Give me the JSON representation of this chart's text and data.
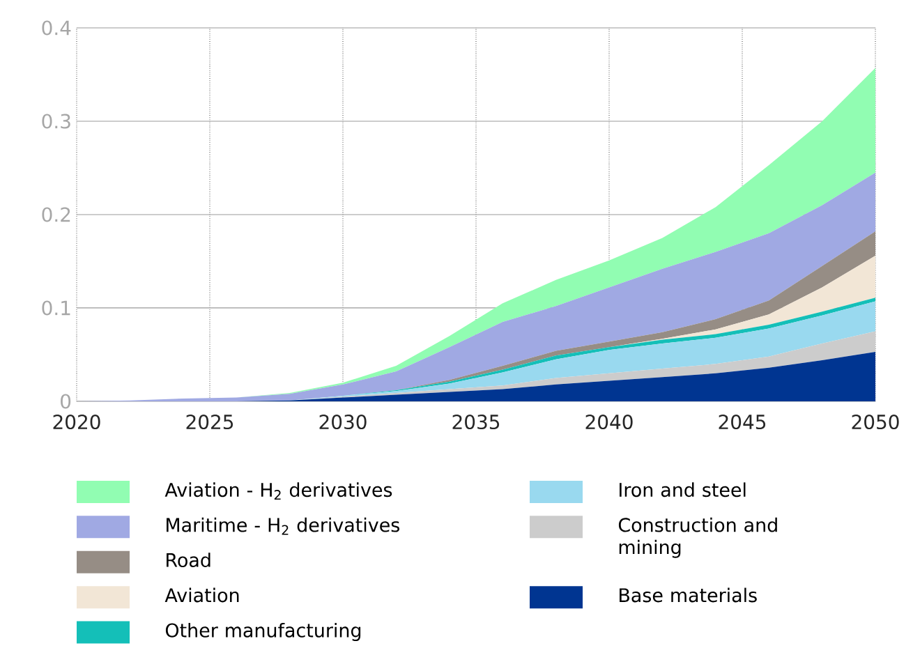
{
  "chart_data": {
    "type": "area",
    "stacked": true,
    "x": [
      2020,
      2022,
      2024,
      2026,
      2028,
      2030,
      2032,
      2034,
      2036,
      2038,
      2040,
      2042,
      2044,
      2046,
      2048,
      2050
    ],
    "series": [
      {
        "name": "Base materials",
        "color": "#003591",
        "values": [
          0,
          0,
          0,
          0,
          0.001,
          0.004,
          0.007,
          0.01,
          0.013,
          0.018,
          0.022,
          0.026,
          0.03,
          0.036,
          0.044,
          0.053
        ]
      },
      {
        "name": "Construction and mining",
        "color": "#cccccc",
        "values": [
          0,
          0,
          0,
          0,
          0,
          0.001,
          0.002,
          0.003,
          0.004,
          0.007,
          0.008,
          0.009,
          0.01,
          0.012,
          0.018,
          0.022
        ]
      },
      {
        "name": "Iron and steel",
        "color": "#99d9ef",
        "values": [
          0,
          0,
          0,
          0,
          0,
          0.001,
          0.002,
          0.006,
          0.014,
          0.02,
          0.025,
          0.027,
          0.028,
          0.03,
          0.03,
          0.032
        ]
      },
      {
        "name": "Other manufacturing",
        "color": "#14bfb8",
        "values": [
          0,
          0,
          0,
          0,
          0,
          0,
          0.001,
          0.002,
          0.003,
          0.004,
          0.003,
          0.004,
          0.004,
          0.004,
          0.004,
          0.004
        ]
      },
      {
        "name": "Aviation",
        "color": "#f2e6d6",
        "values": [
          0,
          0,
          0,
          0,
          0,
          0,
          0,
          0,
          0,
          0,
          0,
          0.001,
          0.005,
          0.011,
          0.026,
          0.045
        ]
      },
      {
        "name": "Road",
        "color": "#968d85",
        "values": [
          0,
          0,
          0,
          0,
          0,
          0,
          0,
          0.002,
          0.004,
          0.005,
          0.006,
          0.007,
          0.011,
          0.015,
          0.023,
          0.026
        ]
      },
      {
        "name": "Maritime - H$_{2}$ derivatives",
        "color": "#a0a9e3",
        "values": [
          0,
          0.001,
          0.003,
          0.004,
          0.007,
          0.012,
          0.02,
          0.035,
          0.047,
          0.048,
          0.058,
          0.068,
          0.072,
          0.072,
          0.065,
          0.063
        ]
      },
      {
        "name": "Aviation - H$_{2}$ derivatives",
        "color": "#91fdb2",
        "values": [
          0,
          0,
          0,
          0,
          0.001,
          0.002,
          0.006,
          0.012,
          0.02,
          0.028,
          0.029,
          0.033,
          0.048,
          0.073,
          0.09,
          0.112
        ]
      }
    ],
    "xlim": [
      2020,
      2050
    ],
    "xticks": [
      2020,
      2025,
      2030,
      2035,
      2040,
      2045,
      2050
    ],
    "ylim": [
      0,
      0.4
    ],
    "yticks": [
      0,
      0.1,
      0.2,
      0.3,
      0.4
    ],
    "grid": true,
    "legend": "bottom"
  }
}
